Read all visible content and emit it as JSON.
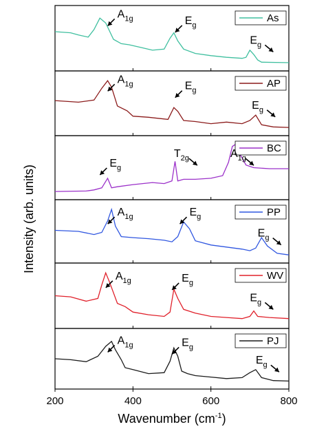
{
  "chart_data": {
    "type": "line",
    "xlabel": "Wavenumber (cm",
    "xlabel_sup": "-1",
    "xlabel_close": ")",
    "ylabel": "Intensity (arb. units)",
    "xlim": [
      200,
      800
    ],
    "x_ticks": [
      "200",
      "400",
      "600",
      "800"
    ],
    "panels": [
      {
        "name": "As",
        "color": "#3fbf9f",
        "x": [
          200,
          240,
          260,
          285,
          300,
          315,
          330,
          350,
          370,
          390,
          420,
          450,
          480,
          495,
          505,
          515,
          530,
          560,
          600,
          640,
          680,
          690,
          700,
          710,
          720,
          730,
          800
        ],
        "y": [
          0.62,
          0.6,
          0.56,
          0.52,
          0.66,
          0.87,
          0.78,
          0.48,
          0.4,
          0.38,
          0.33,
          0.28,
          0.3,
          0.5,
          0.6,
          0.45,
          0.3,
          0.22,
          0.18,
          0.15,
          0.13,
          0.15,
          0.28,
          0.2,
          0.1,
          0.06,
          0.05
        ],
        "peaks": [
          {
            "main": "A",
            "sub": "1g",
            "x": 360,
            "y": 0.88,
            "dir": "left"
          },
          {
            "main": "E",
            "sub": "g",
            "x": 533,
            "y": 0.76,
            "dir": "left"
          },
          {
            "main": "E",
            "sub": "g",
            "x": 700,
            "y": 0.4,
            "dir": "right"
          }
        ]
      },
      {
        "name": "AP",
        "color": "#8b1a1a",
        "x": [
          200,
          260,
          300,
          320,
          335,
          345,
          360,
          385,
          400,
          440,
          490,
          505,
          515,
          530,
          560,
          600,
          640,
          680,
          700,
          715,
          730,
          760,
          800
        ],
        "y": [
          0.55,
          0.52,
          0.56,
          0.78,
          0.92,
          0.8,
          0.45,
          0.36,
          0.26,
          0.24,
          0.2,
          0.42,
          0.35,
          0.18,
          0.16,
          0.12,
          0.15,
          0.12,
          0.18,
          0.28,
          0.1,
          0.06,
          0.05
        ],
        "peaks": [
          {
            "main": "A",
            "sub": "1g",
            "x": 360,
            "y": 0.88,
            "dir": "left"
          },
          {
            "main": "E",
            "sub": "g",
            "x": 533,
            "y": 0.76,
            "dir": "left"
          },
          {
            "main": "E",
            "sub": "g",
            "x": 705,
            "y": 0.4,
            "dir": "right"
          }
        ]
      },
      {
        "name": "BC",
        "color": "#9b30c9",
        "x": [
          200,
          280,
          300,
          320,
          335,
          345,
          360,
          400,
          450,
          480,
          500,
          508,
          515,
          530,
          560,
          600,
          630,
          645,
          655,
          665,
          675,
          690,
          710,
          750,
          800
        ],
        "y": [
          0.05,
          0.06,
          0.08,
          0.12,
          0.3,
          0.12,
          0.14,
          0.18,
          0.22,
          0.2,
          0.25,
          0.62,
          0.25,
          0.28,
          0.28,
          0.3,
          0.35,
          0.6,
          0.9,
          0.95,
          0.75,
          0.55,
          0.5,
          0.48,
          0.48
        ],
        "peaks": [
          {
            "main": "E",
            "sub": "g",
            "x": 340,
            "y": 0.52,
            "dir": "left"
          },
          {
            "main": "T",
            "sub": "2g",
            "x": 505,
            "y": 0.7,
            "dir": "right"
          },
          {
            "main": "A",
            "sub": "1g",
            "x": 650,
            "y": 0.7,
            "dir": "right"
          }
        ]
      },
      {
        "name": "PP",
        "color": "#2f56e0",
        "x": [
          200,
          260,
          300,
          320,
          335,
          345,
          355,
          370,
          400,
          440,
          480,
          500,
          515,
          530,
          545,
          560,
          600,
          640,
          680,
          700,
          715,
          730,
          745,
          770,
          800
        ],
        "y": [
          0.52,
          0.5,
          0.44,
          0.48,
          0.7,
          0.92,
          0.6,
          0.4,
          0.38,
          0.36,
          0.33,
          0.3,
          0.4,
          0.68,
          0.55,
          0.32,
          0.24,
          0.2,
          0.16,
          0.13,
          0.18,
          0.38,
          0.22,
          0.08,
          0.05
        ],
        "peaks": [
          {
            "main": "A",
            "sub": "1g",
            "x": 360,
            "y": 0.8,
            "dir": "left"
          },
          {
            "main": "E",
            "sub": "g",
            "x": 545,
            "y": 0.8,
            "dir": "left"
          },
          {
            "main": "E",
            "sub": "g",
            "x": 720,
            "y": 0.4,
            "dir": "right"
          }
        ]
      },
      {
        "name": "WV",
        "color": "#e0202a",
        "x": [
          200,
          240,
          280,
          310,
          320,
          330,
          340,
          360,
          380,
          400,
          440,
          480,
          495,
          505,
          515,
          530,
          560,
          600,
          640,
          680,
          700,
          710,
          720,
          750,
          800
        ],
        "y": [
          0.5,
          0.48,
          0.4,
          0.45,
          0.7,
          0.92,
          0.75,
          0.36,
          0.3,
          0.2,
          0.15,
          0.12,
          0.2,
          0.62,
          0.45,
          0.25,
          0.18,
          0.12,
          0.1,
          0.08,
          0.12,
          0.22,
          0.12,
          0.1,
          0.08
        ],
        "peaks": [
          {
            "main": "A",
            "sub": "1g",
            "x": 355,
            "y": 0.8,
            "dir": "left"
          },
          {
            "main": "E",
            "sub": "g",
            "x": 525,
            "y": 0.76,
            "dir": "left"
          },
          {
            "main": "E",
            "sub": "g",
            "x": 700,
            "y": 0.4,
            "dir": "right"
          }
        ]
      },
      {
        "name": "PJ",
        "color": "#1a1a1a",
        "x": [
          200,
          240,
          280,
          310,
          330,
          345,
          355,
          370,
          380,
          400,
          440,
          480,
          495,
          505,
          515,
          525,
          540,
          560,
          600,
          640,
          680,
          700,
          715,
          730,
          760,
          800
        ],
        "y": [
          0.5,
          0.48,
          0.44,
          0.55,
          0.75,
          0.85,
          0.68,
          0.48,
          0.32,
          0.28,
          0.2,
          0.22,
          0.45,
          0.72,
          0.55,
          0.25,
          0.2,
          0.16,
          0.13,
          0.1,
          0.12,
          0.22,
          0.28,
          0.12,
          0.06,
          0.05
        ],
        "peaks": [
          {
            "main": "A",
            "sub": "1g",
            "x": 360,
            "y": 0.8,
            "dir": "left"
          },
          {
            "main": "E",
            "sub": "g",
            "x": 525,
            "y": 0.76,
            "dir": "left"
          },
          {
            "main": "E",
            "sub": "g",
            "x": 715,
            "y": 0.4,
            "dir": "right"
          }
        ]
      }
    ]
  }
}
